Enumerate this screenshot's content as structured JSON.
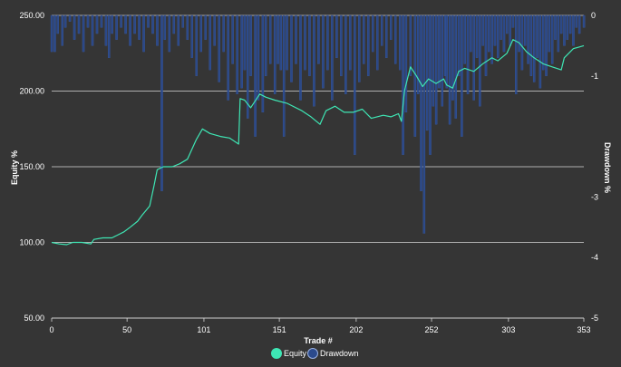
{
  "colors": {
    "background": "#353535",
    "equity": "#3ee6b4",
    "drawdown": "#2b4a8c",
    "drawdown_border": "#3b5fb0",
    "grid": "#d8d8d8",
    "text": "#ffffff"
  },
  "chart_data": {
    "type": "line",
    "xlabel": "Trade #",
    "ylabel_left": "Equity %",
    "ylabel_right": "Drawdown %",
    "xlim": [
      0,
      353
    ],
    "ylim_left": [
      50,
      250
    ],
    "ylim_right": [
      -5,
      0
    ],
    "x_ticks": [
      0,
      50,
      101,
      151,
      202,
      252,
      303,
      353
    ],
    "y_ticks_left": [
      "250.00",
      "200.00",
      "150.00",
      "100.00",
      "50.00"
    ],
    "y_ticks_right": [
      "0",
      "-1",
      "-3",
      "-4",
      "-5"
    ],
    "grid": true,
    "legend_position": "bottom",
    "legend": [
      "Equity",
      "Drawdown"
    ],
    "series": [
      {
        "name": "Equity",
        "axis": "left",
        "points": [
          [
            0,
            100
          ],
          [
            5,
            99
          ],
          [
            10,
            98.5
          ],
          [
            14,
            100
          ],
          [
            20,
            100
          ],
          [
            26,
            99
          ],
          [
            28,
            102
          ],
          [
            34,
            103
          ],
          [
            40,
            103
          ],
          [
            48,
            107
          ],
          [
            52,
            110
          ],
          [
            57,
            114
          ],
          [
            60,
            118
          ],
          [
            65,
            124
          ],
          [
            68,
            138
          ],
          [
            70,
            148
          ],
          [
            74,
            150
          ],
          [
            80,
            150
          ],
          [
            85,
            152
          ],
          [
            90,
            155
          ],
          [
            96,
            168
          ],
          [
            100,
            175
          ],
          [
            105,
            172
          ],
          [
            112,
            170
          ],
          [
            118,
            169
          ],
          [
            124,
            165
          ],
          [
            125,
            195
          ],
          [
            128,
            194
          ],
          [
            132,
            189
          ],
          [
            138,
            198
          ],
          [
            142,
            196
          ],
          [
            148,
            194
          ],
          [
            156,
            192
          ],
          [
            166,
            187
          ],
          [
            172,
            183
          ],
          [
            178,
            178
          ],
          [
            182,
            187
          ],
          [
            188,
            190
          ],
          [
            194,
            186
          ],
          [
            200,
            186
          ],
          [
            206,
            188
          ],
          [
            212,
            182
          ],
          [
            220,
            184
          ],
          [
            225,
            183
          ],
          [
            230,
            185
          ],
          [
            232,
            180
          ],
          [
            234,
            200
          ],
          [
            236,
            208
          ],
          [
            238,
            216
          ],
          [
            242,
            210
          ],
          [
            246,
            203
          ],
          [
            250,
            208
          ],
          [
            255,
            205
          ],
          [
            260,
            208
          ],
          [
            262,
            204
          ],
          [
            266,
            202
          ],
          [
            270,
            213
          ],
          [
            274,
            215
          ],
          [
            280,
            213
          ],
          [
            286,
            218
          ],
          [
            292,
            222
          ],
          [
            296,
            220
          ],
          [
            302,
            225
          ],
          [
            306,
            234
          ],
          [
            310,
            232
          ],
          [
            315,
            226
          ],
          [
            320,
            222
          ],
          [
            326,
            218
          ],
          [
            332,
            216
          ],
          [
            338,
            214
          ],
          [
            340,
            222
          ],
          [
            346,
            228
          ],
          [
            353,
            230
          ]
        ]
      },
      {
        "name": "Drawdown",
        "axis": "right",
        "points": [
          [
            0,
            -0.6
          ],
          [
            2,
            -0.6
          ],
          [
            4,
            -0.3
          ],
          [
            7,
            -0.5
          ],
          [
            9,
            -0.2
          ],
          [
            12,
            -0.1
          ],
          [
            15,
            -0.4
          ],
          [
            18,
            -0.3
          ],
          [
            21,
            -0.6
          ],
          [
            24,
            -0.2
          ],
          [
            27,
            -0.5
          ],
          [
            30,
            -0.3
          ],
          [
            33,
            -0.2
          ],
          [
            36,
            -0.5
          ],
          [
            38,
            -0.7
          ],
          [
            40,
            -0.3
          ],
          [
            43,
            -0.4
          ],
          [
            46,
            -0.2
          ],
          [
            49,
            -0.3
          ],
          [
            52,
            -0.5
          ],
          [
            55,
            -0.3
          ],
          [
            58,
            -0.4
          ],
          [
            61,
            -0.6
          ],
          [
            64,
            -0.2
          ],
          [
            67,
            -0.3
          ],
          [
            70,
            -0.5
          ],
          [
            73,
            -2.9
          ],
          [
            75,
            -0.4
          ],
          [
            78,
            -0.6
          ],
          [
            81,
            -0.3
          ],
          [
            84,
            -0.5
          ],
          [
            87,
            -0.2
          ],
          [
            90,
            -0.4
          ],
          [
            93,
            -0.7
          ],
          [
            96,
            -1.0
          ],
          [
            99,
            -0.6
          ],
          [
            102,
            -0.4
          ],
          [
            105,
            -0.9
          ],
          [
            108,
            -0.5
          ],
          [
            111,
            -1.1
          ],
          [
            114,
            -0.6
          ],
          [
            117,
            -1.4
          ],
          [
            120,
            -0.8
          ],
          [
            123,
            -1.3
          ],
          [
            126,
            -1.2
          ],
          [
            128,
            -0.9
          ],
          [
            130,
            -1.7
          ],
          [
            132,
            -1.0
          ],
          [
            135,
            -2.0
          ],
          [
            137,
            -1.4
          ],
          [
            140,
            -1.6
          ],
          [
            142,
            -1.0
          ],
          [
            145,
            -0.8
          ],
          [
            148,
            -1.3
          ],
          [
            150,
            -0.8
          ],
          [
            152,
            -0.9
          ],
          [
            154,
            -2.0
          ],
          [
            156,
            -0.9
          ],
          [
            159,
            -1.1
          ],
          [
            162,
            -0.8
          ],
          [
            165,
            -1.4
          ],
          [
            168,
            -0.9
          ],
          [
            171,
            -1.0
          ],
          [
            174,
            -1.5
          ],
          [
            177,
            -0.8
          ],
          [
            180,
            -1.2
          ],
          [
            183,
            -0.9
          ],
          [
            186,
            -1.4
          ],
          [
            189,
            -0.7
          ],
          [
            192,
            -1.0
          ],
          [
            195,
            -1.3
          ],
          [
            198,
            -0.9
          ],
          [
            201,
            -2.3
          ],
          [
            204,
            -1.1
          ],
          [
            207,
            -0.8
          ],
          [
            210,
            -1.0
          ],
          [
            213,
            -0.6
          ],
          [
            216,
            -0.9
          ],
          [
            219,
            -0.5
          ],
          [
            222,
            -0.7
          ],
          [
            225,
            -0.4
          ],
          [
            228,
            -0.8
          ],
          [
            231,
            -0.9
          ],
          [
            233,
            -2.3
          ],
          [
            235,
            -1.6
          ],
          [
            238,
            -1.0
          ],
          [
            241,
            -2.0
          ],
          [
            243,
            -1.3
          ],
          [
            245,
            -2.9
          ],
          [
            247,
            -3.6
          ],
          [
            249,
            -1.9
          ],
          [
            251,
            -2.3
          ],
          [
            253,
            -1.5
          ],
          [
            255,
            -1.8
          ],
          [
            257,
            -1.2
          ],
          [
            259,
            -1.5
          ],
          [
            261,
            -1.0
          ],
          [
            262,
            -1.2
          ],
          [
            264,
            -1.8
          ],
          [
            266,
            -1.4
          ],
          [
            268,
            -1.7
          ],
          [
            270,
            -1.0
          ],
          [
            272,
            -2.0
          ],
          [
            274,
            -0.8
          ],
          [
            276,
            -1.3
          ],
          [
            278,
            -0.6
          ],
          [
            280,
            -1.4
          ],
          [
            282,
            -0.7
          ],
          [
            284,
            -1.5
          ],
          [
            286,
            -0.5
          ],
          [
            288,
            -1.0
          ],
          [
            290,
            -0.6
          ],
          [
            292,
            -0.8
          ],
          [
            294,
            -0.5
          ],
          [
            296,
            -0.7
          ],
          [
            298,
            -0.4
          ],
          [
            300,
            -0.6
          ],
          [
            302,
            -0.3
          ],
          [
            304,
            -0.5
          ],
          [
            306,
            -0.2
          ],
          [
            308,
            -1.3
          ],
          [
            310,
            -0.6
          ],
          [
            312,
            -0.9
          ],
          [
            314,
            -0.5
          ],
          [
            316,
            -0.8
          ],
          [
            318,
            -1.0
          ],
          [
            320,
            -1.1
          ],
          [
            322,
            -0.7
          ],
          [
            324,
            -1.2
          ],
          [
            326,
            -0.9
          ],
          [
            328,
            -1.0
          ],
          [
            330,
            -0.6
          ],
          [
            332,
            -0.8
          ],
          [
            334,
            -0.4
          ],
          [
            336,
            -0.6
          ],
          [
            338,
            -0.3
          ],
          [
            340,
            -0.5
          ],
          [
            342,
            -0.4
          ],
          [
            344,
            -0.3
          ],
          [
            346,
            -0.5
          ],
          [
            348,
            -0.2
          ],
          [
            350,
            -0.3
          ],
          [
            353,
            -0.2
          ]
        ]
      }
    ]
  }
}
